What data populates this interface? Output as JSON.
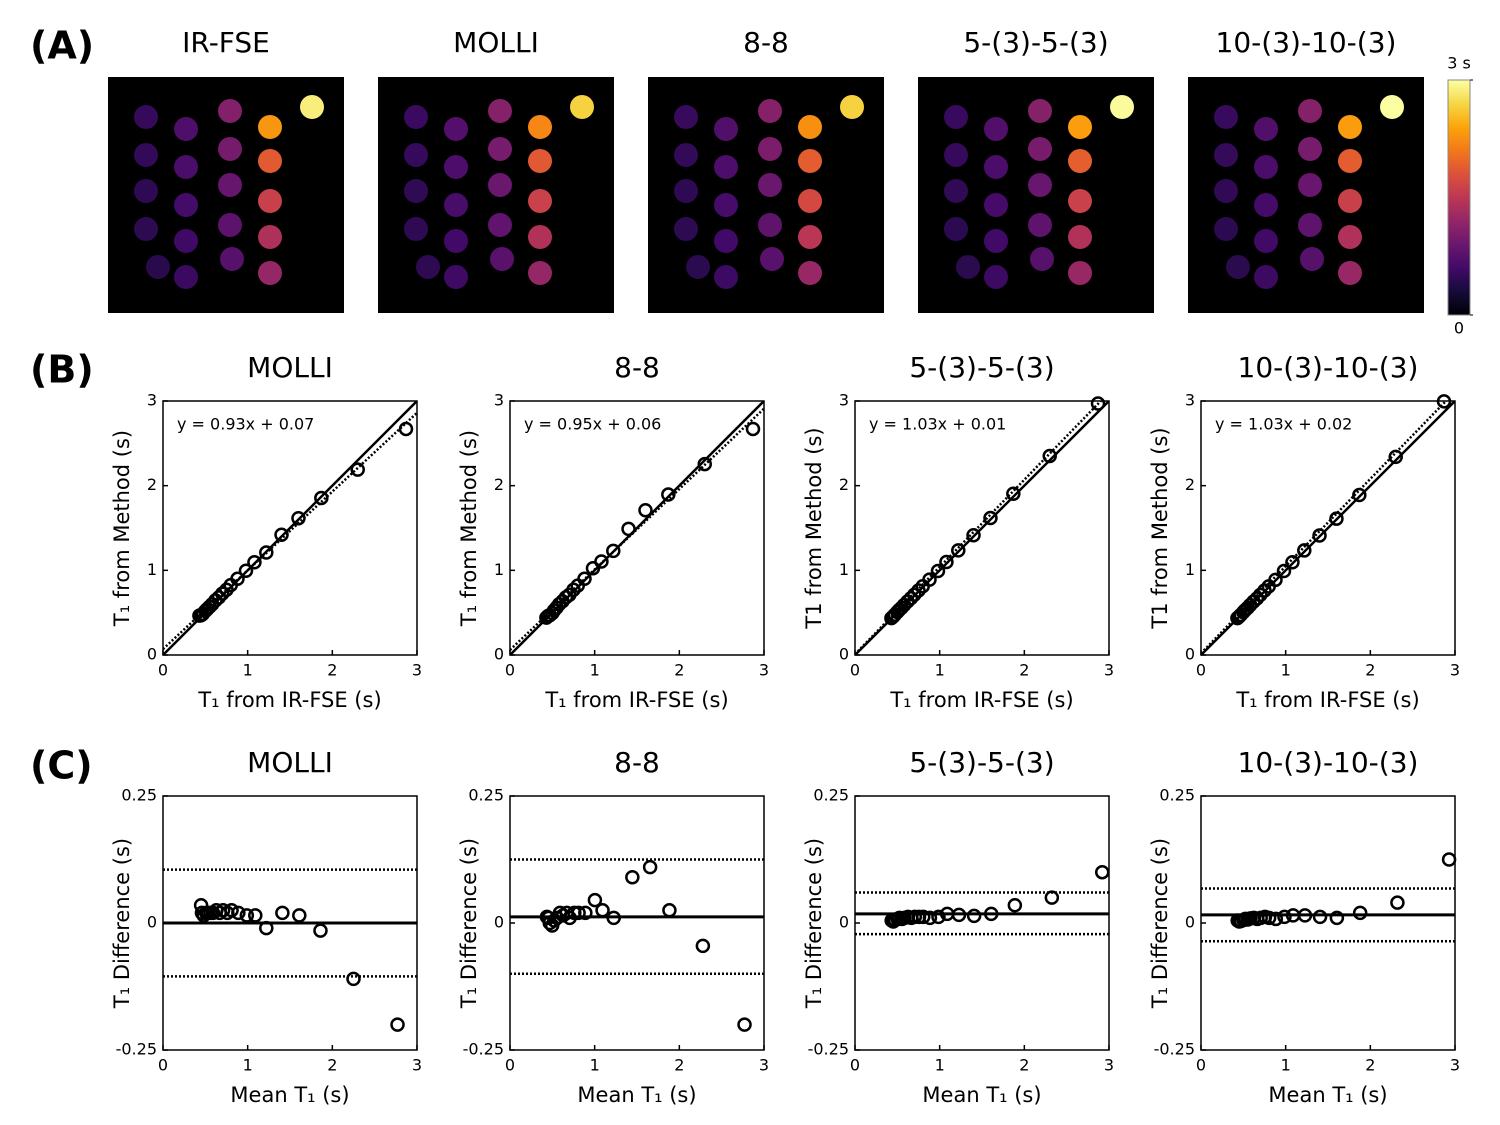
{
  "panel_labels": [
    "(A)",
    "(B)",
    "(C)"
  ],
  "chart_data": [
    {
      "type": "image",
      "titles": [
        "IR-FSE",
        "MOLLI",
        "8-8",
        "5-(3)-5-(3)",
        "10-(3)-10-(3)"
      ],
      "colormap": "inferno",
      "colorbar": {
        "lim": [
          0,
          3
        ],
        "ticks": [
          {
            "value": 3,
            "label": "3 s"
          },
          0
        ]
      }
    },
    {
      "type": "scatter",
      "title": "MOLLI",
      "xlabel": "T₁ from IR-FSE (s)",
      "ylabel": "T₁ from Method (s)",
      "annotation": "y = 0.93x + 0.07",
      "fit": {
        "slope": 0.93,
        "intercept": 0.07
      },
      "identity_line": true,
      "color": "#000000",
      "x": [
        0.43,
        0.45,
        0.47,
        0.5,
        0.52,
        0.55,
        0.58,
        0.62,
        0.66,
        0.7,
        0.75,
        0.8,
        0.88,
        0.98,
        1.08,
        1.22,
        1.4,
        1.6,
        1.87,
        2.3,
        2.87
      ],
      "y": [
        0.465,
        0.47,
        0.485,
        0.52,
        0.54,
        0.57,
        0.6,
        0.645,
        0.68,
        0.725,
        0.77,
        0.825,
        0.9,
        0.995,
        1.095,
        1.21,
        1.42,
        1.615,
        1.855,
        2.19,
        2.67
      ],
      "xlim": [
        0,
        3
      ],
      "ylim": [
        0,
        3
      ],
      "xticks": [
        0,
        1,
        2,
        3
      ],
      "yticks": [
        0,
        1,
        2,
        3
      ]
    },
    {
      "type": "scatter",
      "title": "8-8",
      "xlabel": "T₁ from IR-FSE (s)",
      "ylabel": "T₁ from Method (s)",
      "annotation": "y = 0.95x + 0.06",
      "fit": {
        "slope": 0.95,
        "intercept": 0.06
      },
      "identity_line": true,
      "color": "#000000",
      "x": [
        0.43,
        0.45,
        0.47,
        0.5,
        0.52,
        0.55,
        0.58,
        0.62,
        0.66,
        0.7,
        0.75,
        0.8,
        0.88,
        0.98,
        1.08,
        1.22,
        1.4,
        1.6,
        1.87,
        2.3,
        2.87
      ],
      "y": [
        0.442,
        0.46,
        0.47,
        0.495,
        0.525,
        0.56,
        0.6,
        0.635,
        0.68,
        0.71,
        0.77,
        0.82,
        0.9,
        1.025,
        1.105,
        1.23,
        1.49,
        1.71,
        1.895,
        2.255,
        2.67
      ],
      "xlim": [
        0,
        3
      ],
      "ylim": [
        0,
        3
      ],
      "xticks": [
        0,
        1,
        2,
        3
      ],
      "yticks": [
        0,
        1,
        2,
        3
      ]
    },
    {
      "type": "scatter",
      "title": "5-(3)-5-(3)",
      "xlabel": "T₁ from IR-FSE (s)",
      "ylabel": "T1 from Method (s)",
      "annotation": "y = 1.03x + 0.01",
      "fit": {
        "slope": 1.03,
        "intercept": 0.01
      },
      "identity_line": true,
      "color": "#000000",
      "x": [
        0.43,
        0.45,
        0.47,
        0.5,
        0.52,
        0.55,
        0.58,
        0.62,
        0.66,
        0.7,
        0.75,
        0.8,
        0.88,
        0.98,
        1.08,
        1.22,
        1.4,
        1.6,
        1.87,
        2.3,
        2.87
      ],
      "y": [
        0.435,
        0.453,
        0.476,
        0.508,
        0.53,
        0.558,
        0.59,
        0.632,
        0.67,
        0.712,
        0.762,
        0.812,
        0.89,
        0.992,
        1.098,
        1.236,
        1.414,
        1.618,
        1.905,
        2.35,
        2.97
      ],
      "xlim": [
        0,
        3
      ],
      "ylim": [
        0,
        3
      ],
      "xticks": [
        0,
        1,
        2,
        3
      ],
      "yticks": [
        0,
        1,
        2,
        3
      ]
    },
    {
      "type": "scatter",
      "title": "10-(3)-10-(3)",
      "xlabel": "T₁ from IR-FSE (s)",
      "ylabel": "T1 from Method (s)",
      "annotation": "y = 1.03x + 0.02",
      "fit": {
        "slope": 1.03,
        "intercept": 0.02
      },
      "identity_line": true,
      "color": "#000000",
      "x": [
        0.43,
        0.45,
        0.47,
        0.5,
        0.52,
        0.55,
        0.58,
        0.62,
        0.66,
        0.7,
        0.75,
        0.8,
        0.88,
        0.98,
        1.08,
        1.22,
        1.4,
        1.6,
        1.87,
        2.3,
        2.87
      ],
      "y": [
        0.435,
        0.453,
        0.474,
        0.506,
        0.528,
        0.557,
        0.589,
        0.63,
        0.668,
        0.71,
        0.762,
        0.81,
        0.888,
        0.992,
        1.095,
        1.235,
        1.412,
        1.61,
        1.89,
        2.34,
        2.995
      ],
      "xlim": [
        0,
        3
      ],
      "ylim": [
        0,
        3
      ],
      "xticks": [
        0,
        1,
        2,
        3
      ],
      "yticks": [
        0,
        1,
        2,
        3
      ]
    },
    {
      "type": "scatter",
      "title": "MOLLI",
      "xlabel": "Mean T₁ (s)",
      "ylabel": "T₁ Difference (s)",
      "color": "#000000",
      "hlines": [
        {
          "value": 0,
          "style": "solid"
        },
        {
          "value": 0.105,
          "style": "dotted"
        },
        {
          "value": -0.105,
          "style": "dotted"
        }
      ],
      "x": [
        0.45,
        0.46,
        0.48,
        0.51,
        0.53,
        0.56,
        0.59,
        0.63,
        0.67,
        0.71,
        0.76,
        0.81,
        0.89,
        0.99,
        1.09,
        1.22,
        1.41,
        1.61,
        1.86,
        2.25,
        2.77
      ],
      "y": [
        0.035,
        0.02,
        0.015,
        0.02,
        0.02,
        0.02,
        0.02,
        0.025,
        0.02,
        0.025,
        0.02,
        0.025,
        0.02,
        0.015,
        0.015,
        -0.01,
        0.02,
        0.015,
        -0.015,
        -0.11,
        -0.2
      ],
      "xlim": [
        0,
        3
      ],
      "ylim": [
        -0.25,
        0.25
      ],
      "xticks": [
        0,
        1,
        2,
        3
      ],
      "yticks": [
        -0.25,
        0,
        0.25
      ]
    },
    {
      "type": "scatter",
      "title": "8-8",
      "xlabel": "Mean T₁ (s)",
      "ylabel": "T₁ Difference (s)",
      "color": "#000000",
      "hlines": [
        {
          "value": 0.012,
          "style": "solid"
        },
        {
          "value": 0.125,
          "style": "dotted"
        },
        {
          "value": -0.1,
          "style": "dotted"
        }
      ],
      "x": [
        0.436,
        0.455,
        0.47,
        0.498,
        0.523,
        0.555,
        0.59,
        0.628,
        0.67,
        0.705,
        0.76,
        0.81,
        0.89,
        1.003,
        1.093,
        1.225,
        1.445,
        1.655,
        1.883,
        2.278,
        2.77
      ],
      "y": [
        0.012,
        0.01,
        0.0,
        -0.005,
        0.005,
        0.01,
        0.02,
        0.015,
        0.02,
        0.01,
        0.02,
        0.02,
        0.02,
        0.045,
        0.025,
        0.01,
        0.09,
        0.11,
        0.025,
        -0.045,
        -0.2
      ],
      "xlim": [
        0,
        3
      ],
      "ylim": [
        -0.25,
        0.25
      ],
      "xticks": [
        0,
        1,
        2,
        3
      ],
      "yticks": [
        -0.25,
        0,
        0.25
      ]
    },
    {
      "type": "scatter",
      "title": "5-(3)-5-(3)",
      "xlabel": "Mean T₁ (s)",
      "ylabel": "T₁ Difference (s)",
      "color": "#000000",
      "hlines": [
        {
          "value": 0.018,
          "style": "solid"
        },
        {
          "value": 0.06,
          "style": "dotted"
        },
        {
          "value": -0.022,
          "style": "dotted"
        }
      ],
      "x": [
        0.433,
        0.452,
        0.473,
        0.504,
        0.525,
        0.554,
        0.585,
        0.626,
        0.665,
        0.706,
        0.756,
        0.806,
        0.885,
        0.986,
        1.089,
        1.228,
        1.407,
        1.609,
        1.888,
        2.325,
        2.92
      ],
      "y": [
        0.005,
        0.003,
        0.006,
        0.008,
        0.01,
        0.008,
        0.01,
        0.012,
        0.01,
        0.012,
        0.012,
        0.012,
        0.01,
        0.012,
        0.018,
        0.016,
        0.014,
        0.018,
        0.035,
        0.05,
        0.1
      ],
      "xlim": [
        0,
        3
      ],
      "ylim": [
        -0.25,
        0.25
      ],
      "xticks": [
        0,
        1,
        2,
        3
      ],
      "yticks": [
        -0.25,
        0,
        0.25
      ]
    },
    {
      "type": "scatter",
      "title": "10-(3)-10-(3)",
      "xlabel": "Mean T₁ (s)",
      "ylabel": "T₁ Difference (s)",
      "color": "#000000",
      "hlines": [
        {
          "value": 0.016,
          "style": "solid"
        },
        {
          "value": 0.068,
          "style": "dotted"
        },
        {
          "value": -0.036,
          "style": "dotted"
        }
      ],
      "x": [
        0.433,
        0.452,
        0.472,
        0.503,
        0.524,
        0.554,
        0.585,
        0.625,
        0.664,
        0.705,
        0.756,
        0.805,
        0.884,
        0.986,
        1.088,
        1.228,
        1.406,
        1.605,
        1.88,
        2.32,
        2.93
      ],
      "y": [
        0.005,
        0.003,
        0.004,
        0.006,
        0.008,
        0.007,
        0.009,
        0.01,
        0.008,
        0.01,
        0.012,
        0.01,
        0.008,
        0.012,
        0.015,
        0.015,
        0.012,
        0.01,
        0.02,
        0.04,
        0.125
      ],
      "xlim": [
        0,
        3
      ],
      "ylim": [
        -0.25,
        0.25
      ],
      "xticks": [
        0,
        1,
        2,
        3
      ],
      "yticks": [
        -0.25,
        0,
        0.25
      ]
    }
  ]
}
